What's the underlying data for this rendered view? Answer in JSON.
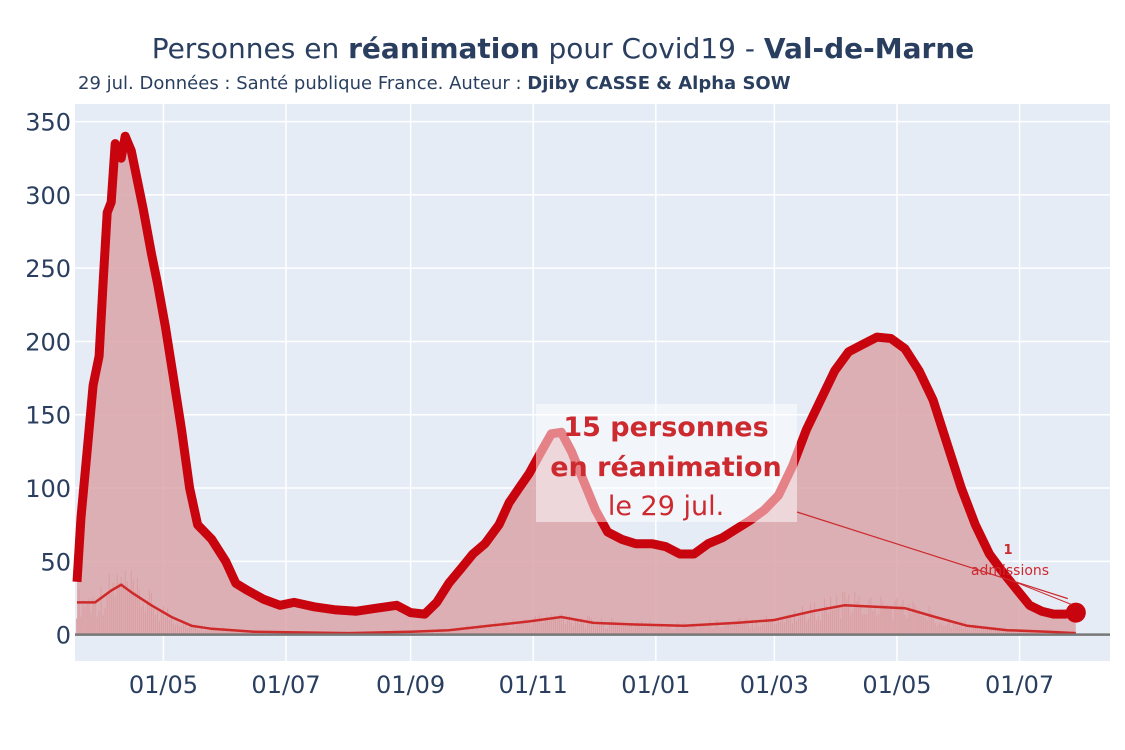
{
  "title": {
    "part1": "Personnes en ",
    "part2": "réanimation",
    "part3": " pour Covid19 - ",
    "part4": "Val-de-Marne"
  },
  "subtitle": {
    "part1": "29 jul. Données : Santé publique France. Auteur : ",
    "part2": "Djiby CASSE & Alpha SOW"
  },
  "annotation": {
    "line1": "15 personnes",
    "line2": "en réanimation",
    "line3": "le 29 jul."
  },
  "admissions_label": {
    "value": "1",
    "text": "admissions"
  },
  "colors": {
    "plot_bg": "#e5ecf6",
    "main_line": "#c8050e",
    "fill": "#dba5a8",
    "secondary_line": "#cf2a2a",
    "bars": "#d44d55",
    "text": "#2a3f5f",
    "annotation_text": "#cc2a2f"
  },
  "chart_data": {
    "type": "area",
    "title": "Personnes en réanimation pour Covid19 - Val-de-Marne",
    "xlabel": "",
    "ylabel": "",
    "ylim": [
      -18,
      362
    ],
    "xlim": [
      "2020-03-18",
      "2021-08-15"
    ],
    "grid": true,
    "x_ticks": [
      "2020-05-01",
      "2020-07-01",
      "2020-09-01",
      "2020-11-01",
      "2021-01-01",
      "2021-03-01",
      "2021-05-01",
      "2021-07-01"
    ],
    "x_tick_labels": [
      "01/05",
      "01/07",
      "01/09",
      "01/11",
      "01/01",
      "01/03",
      "01/05",
      "01/07"
    ],
    "y_ticks": [
      0,
      50,
      100,
      150,
      200,
      250,
      300,
      350
    ],
    "y_tick_labels": [
      "0",
      "50",
      "100",
      "150",
      "200",
      "250",
      "300",
      "350"
    ],
    "series": [
      {
        "name": "",
        "kind": "area",
        "points": [
          [
            "2020-03-19",
            36
          ],
          [
            "2020-03-21",
            80
          ],
          [
            "2020-03-24",
            125
          ],
          [
            "2020-03-27",
            170
          ],
          [
            "2020-03-30",
            190
          ],
          [
            "2020-04-01",
            240
          ],
          [
            "2020-04-03",
            288
          ],
          [
            "2020-04-05",
            295
          ],
          [
            "2020-04-07",
            335
          ],
          [
            "2020-04-10",
            325
          ],
          [
            "2020-04-12",
            340
          ],
          [
            "2020-04-15",
            330
          ],
          [
            "2020-04-18",
            310
          ],
          [
            "2020-04-21",
            290
          ],
          [
            "2020-04-25",
            260
          ],
          [
            "2020-04-28",
            240
          ],
          [
            "2020-05-02",
            210
          ],
          [
            "2020-05-06",
            175
          ],
          [
            "2020-05-10",
            140
          ],
          [
            "2020-05-14",
            100
          ],
          [
            "2020-05-18",
            75
          ],
          [
            "2020-05-25",
            65
          ],
          [
            "2020-06-01",
            50
          ],
          [
            "2020-06-06",
            35
          ],
          [
            "2020-06-12",
            30
          ],
          [
            "2020-06-20",
            24
          ],
          [
            "2020-06-28",
            20
          ],
          [
            "2020-07-05",
            22
          ],
          [
            "2020-07-15",
            19
          ],
          [
            "2020-07-25",
            17
          ],
          [
            "2020-08-05",
            16
          ],
          [
            "2020-08-15",
            18
          ],
          [
            "2020-08-25",
            20
          ],
          [
            "2020-09-01",
            15
          ],
          [
            "2020-09-08",
            14
          ],
          [
            "2020-09-14",
            22
          ],
          [
            "2020-09-20",
            35
          ],
          [
            "2020-09-26",
            45
          ],
          [
            "2020-10-02",
            55
          ],
          [
            "2020-10-08",
            62
          ],
          [
            "2020-10-15",
            75
          ],
          [
            "2020-10-20",
            90
          ],
          [
            "2020-10-25",
            100
          ],
          [
            "2020-10-30",
            110
          ],
          [
            "2020-11-05",
            125
          ],
          [
            "2020-11-10",
            137
          ],
          [
            "2020-11-15",
            138
          ],
          [
            "2020-11-20",
            125
          ],
          [
            "2020-11-26",
            105
          ],
          [
            "2020-12-02",
            85
          ],
          [
            "2020-12-08",
            70
          ],
          [
            "2020-12-15",
            65
          ],
          [
            "2020-12-22",
            62
          ],
          [
            "2020-12-30",
            62
          ],
          [
            "2021-01-06",
            60
          ],
          [
            "2021-01-13",
            55
          ],
          [
            "2021-01-20",
            55
          ],
          [
            "2021-01-27",
            62
          ],
          [
            "2021-02-03",
            66
          ],
          [
            "2021-02-10",
            72
          ],
          [
            "2021-02-17",
            78
          ],
          [
            "2021-02-24",
            85
          ],
          [
            "2021-03-03",
            95
          ],
          [
            "2021-03-10",
            115
          ],
          [
            "2021-03-17",
            140
          ],
          [
            "2021-03-24",
            160
          ],
          [
            "2021-03-31",
            180
          ],
          [
            "2021-04-07",
            193
          ],
          [
            "2021-04-14",
            198
          ],
          [
            "2021-04-21",
            203
          ],
          [
            "2021-04-28",
            202
          ],
          [
            "2021-05-05",
            195
          ],
          [
            "2021-05-12",
            180
          ],
          [
            "2021-05-19",
            160
          ],
          [
            "2021-05-26",
            130
          ],
          [
            "2021-06-02",
            100
          ],
          [
            "2021-06-09",
            75
          ],
          [
            "2021-06-16",
            55
          ],
          [
            "2021-06-23",
            42
          ],
          [
            "2021-06-30",
            30
          ],
          [
            "2021-07-06",
            20
          ],
          [
            "2021-07-12",
            16
          ],
          [
            "2021-07-18",
            14
          ],
          [
            "2021-07-24",
            14
          ],
          [
            "2021-07-29",
            15
          ]
        ]
      },
      {
        "name": "",
        "kind": "line",
        "points": [
          [
            "2020-03-19",
            22
          ],
          [
            "2020-03-28",
            22
          ],
          [
            "2020-04-05",
            30
          ],
          [
            "2020-04-10",
            34
          ],
          [
            "2020-04-16",
            28
          ],
          [
            "2020-04-25",
            20
          ],
          [
            "2020-05-05",
            12
          ],
          [
            "2020-05-15",
            6
          ],
          [
            "2020-05-25",
            4
          ],
          [
            "2020-06-15",
            2
          ],
          [
            "2020-08-01",
            1
          ],
          [
            "2020-09-01",
            2
          ],
          [
            "2020-09-20",
            3
          ],
          [
            "2020-10-10",
            6
          ],
          [
            "2020-10-30",
            9
          ],
          [
            "2020-11-15",
            12
          ],
          [
            "2020-12-01",
            8
          ],
          [
            "2020-12-20",
            7
          ],
          [
            "2021-01-15",
            6
          ],
          [
            "2021-02-10",
            8
          ],
          [
            "2021-03-01",
            10
          ],
          [
            "2021-03-20",
            16
          ],
          [
            "2021-04-05",
            20
          ],
          [
            "2021-04-20",
            19
          ],
          [
            "2021-05-05",
            18
          ],
          [
            "2021-05-20",
            12
          ],
          [
            "2021-06-05",
            6
          ],
          [
            "2021-06-25",
            3
          ],
          [
            "2021-07-15",
            2
          ],
          [
            "2021-07-29",
            1
          ]
        ]
      }
    ],
    "last_point": [
      "2021-07-29",
      15
    ]
  }
}
